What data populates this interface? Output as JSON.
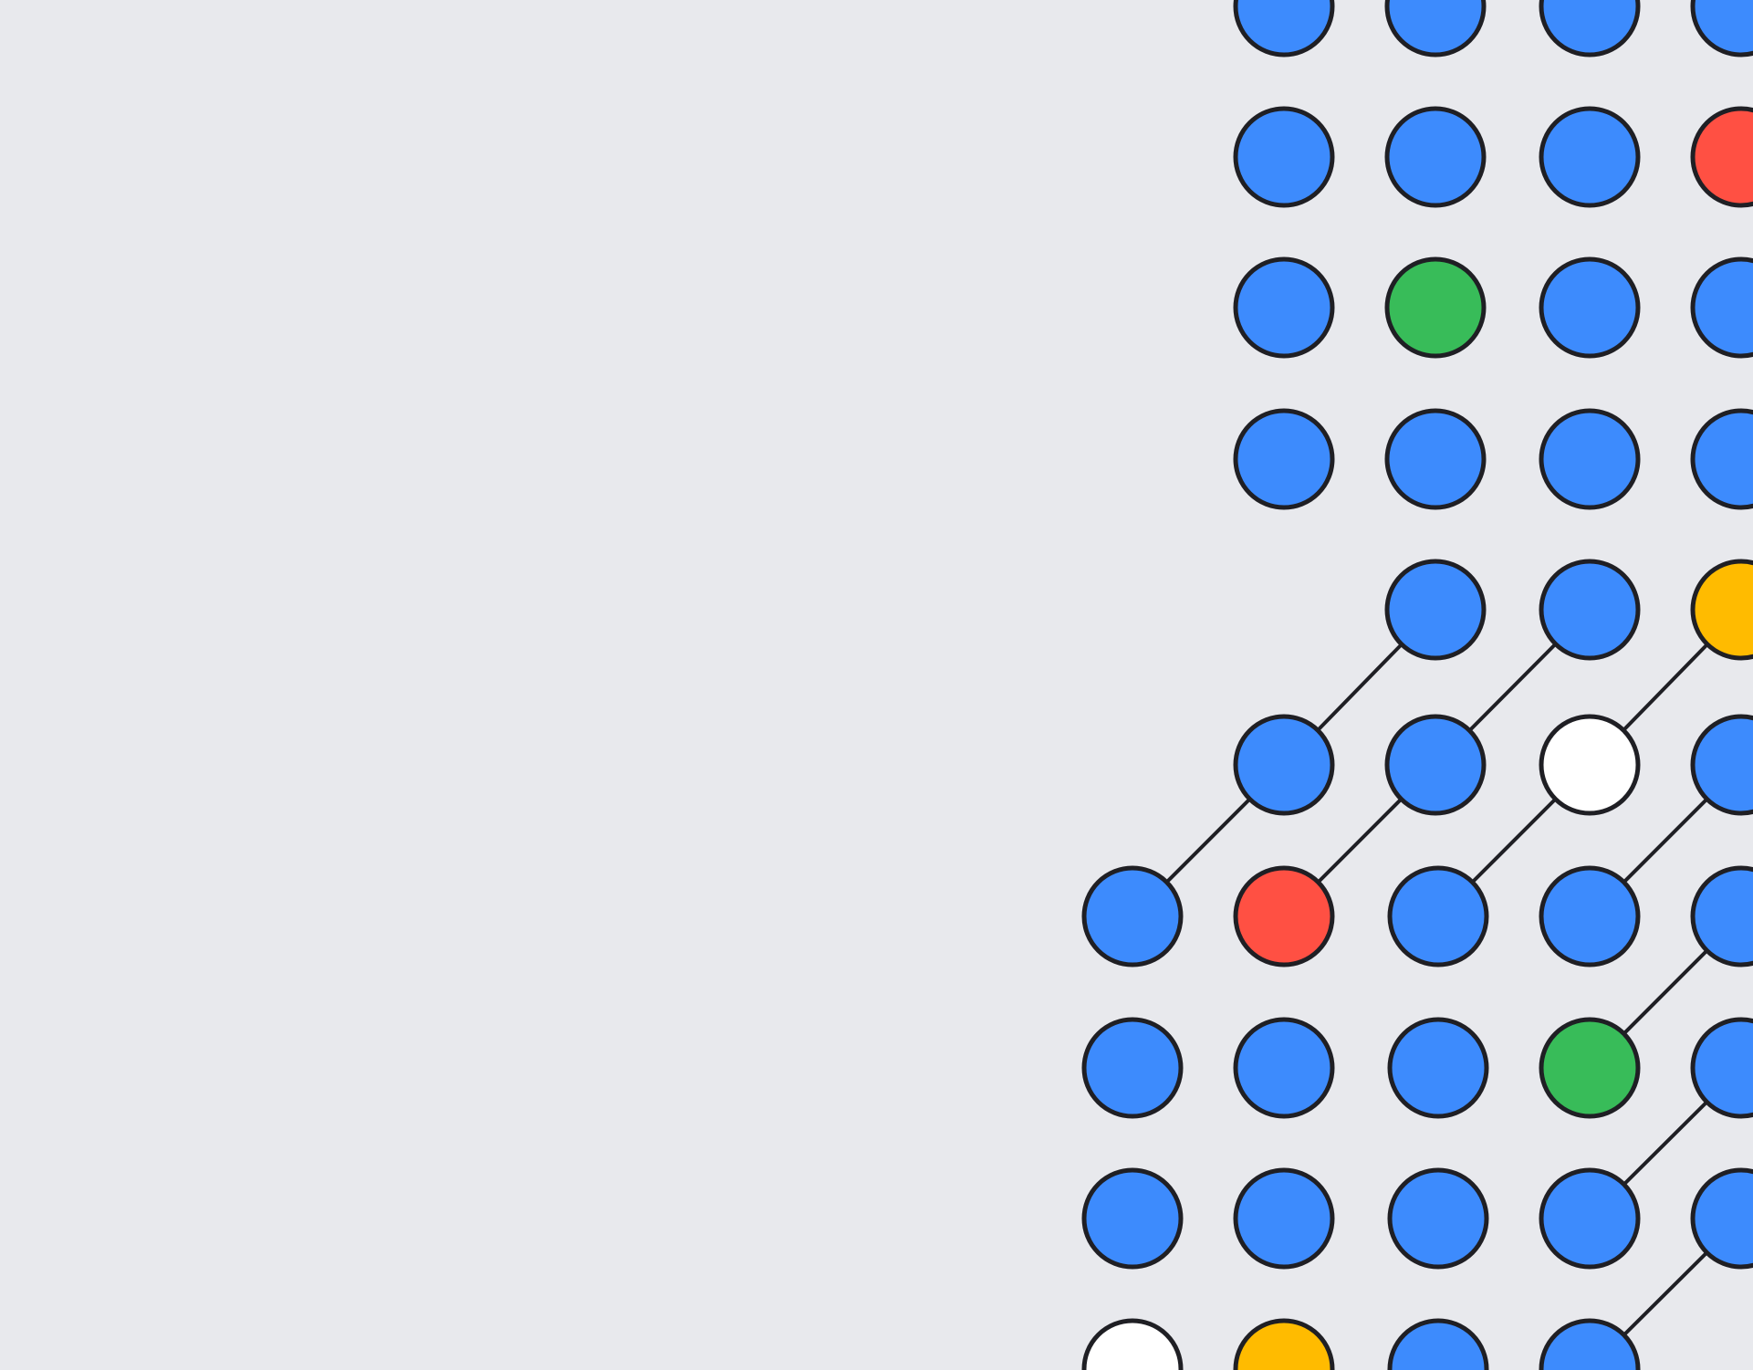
{
  "colors": {
    "background": "#e8e9ed",
    "outline": "#1f1f24",
    "blue": "#3d8bfd",
    "red": "#ff5043",
    "green": "#38bc59",
    "yellow": "#ffbb00",
    "empty": "#ffffff"
  },
  "grid": {
    "rows": [
      [
        "blue",
        "blue",
        "blue",
        "blue"
      ],
      [
        "blue",
        "blue",
        "blue",
        "red"
      ],
      [
        "blue",
        "green",
        "blue",
        "blue"
      ],
      [
        "blue",
        "blue",
        "blue",
        "blue"
      ],
      [
        null,
        "blue",
        "blue",
        "yellow"
      ],
      [
        "blue",
        "blue",
        "empty",
        "blue"
      ],
      [
        "blue",
        "red",
        "blue",
        "blue",
        "blue"
      ],
      [
        "blue",
        "blue",
        "blue",
        "green",
        "blue"
      ],
      [
        "blue",
        "blue",
        "blue",
        "blue",
        "blue"
      ],
      [
        "empty",
        "yellow",
        "blue",
        "blue",
        null
      ]
    ]
  }
}
